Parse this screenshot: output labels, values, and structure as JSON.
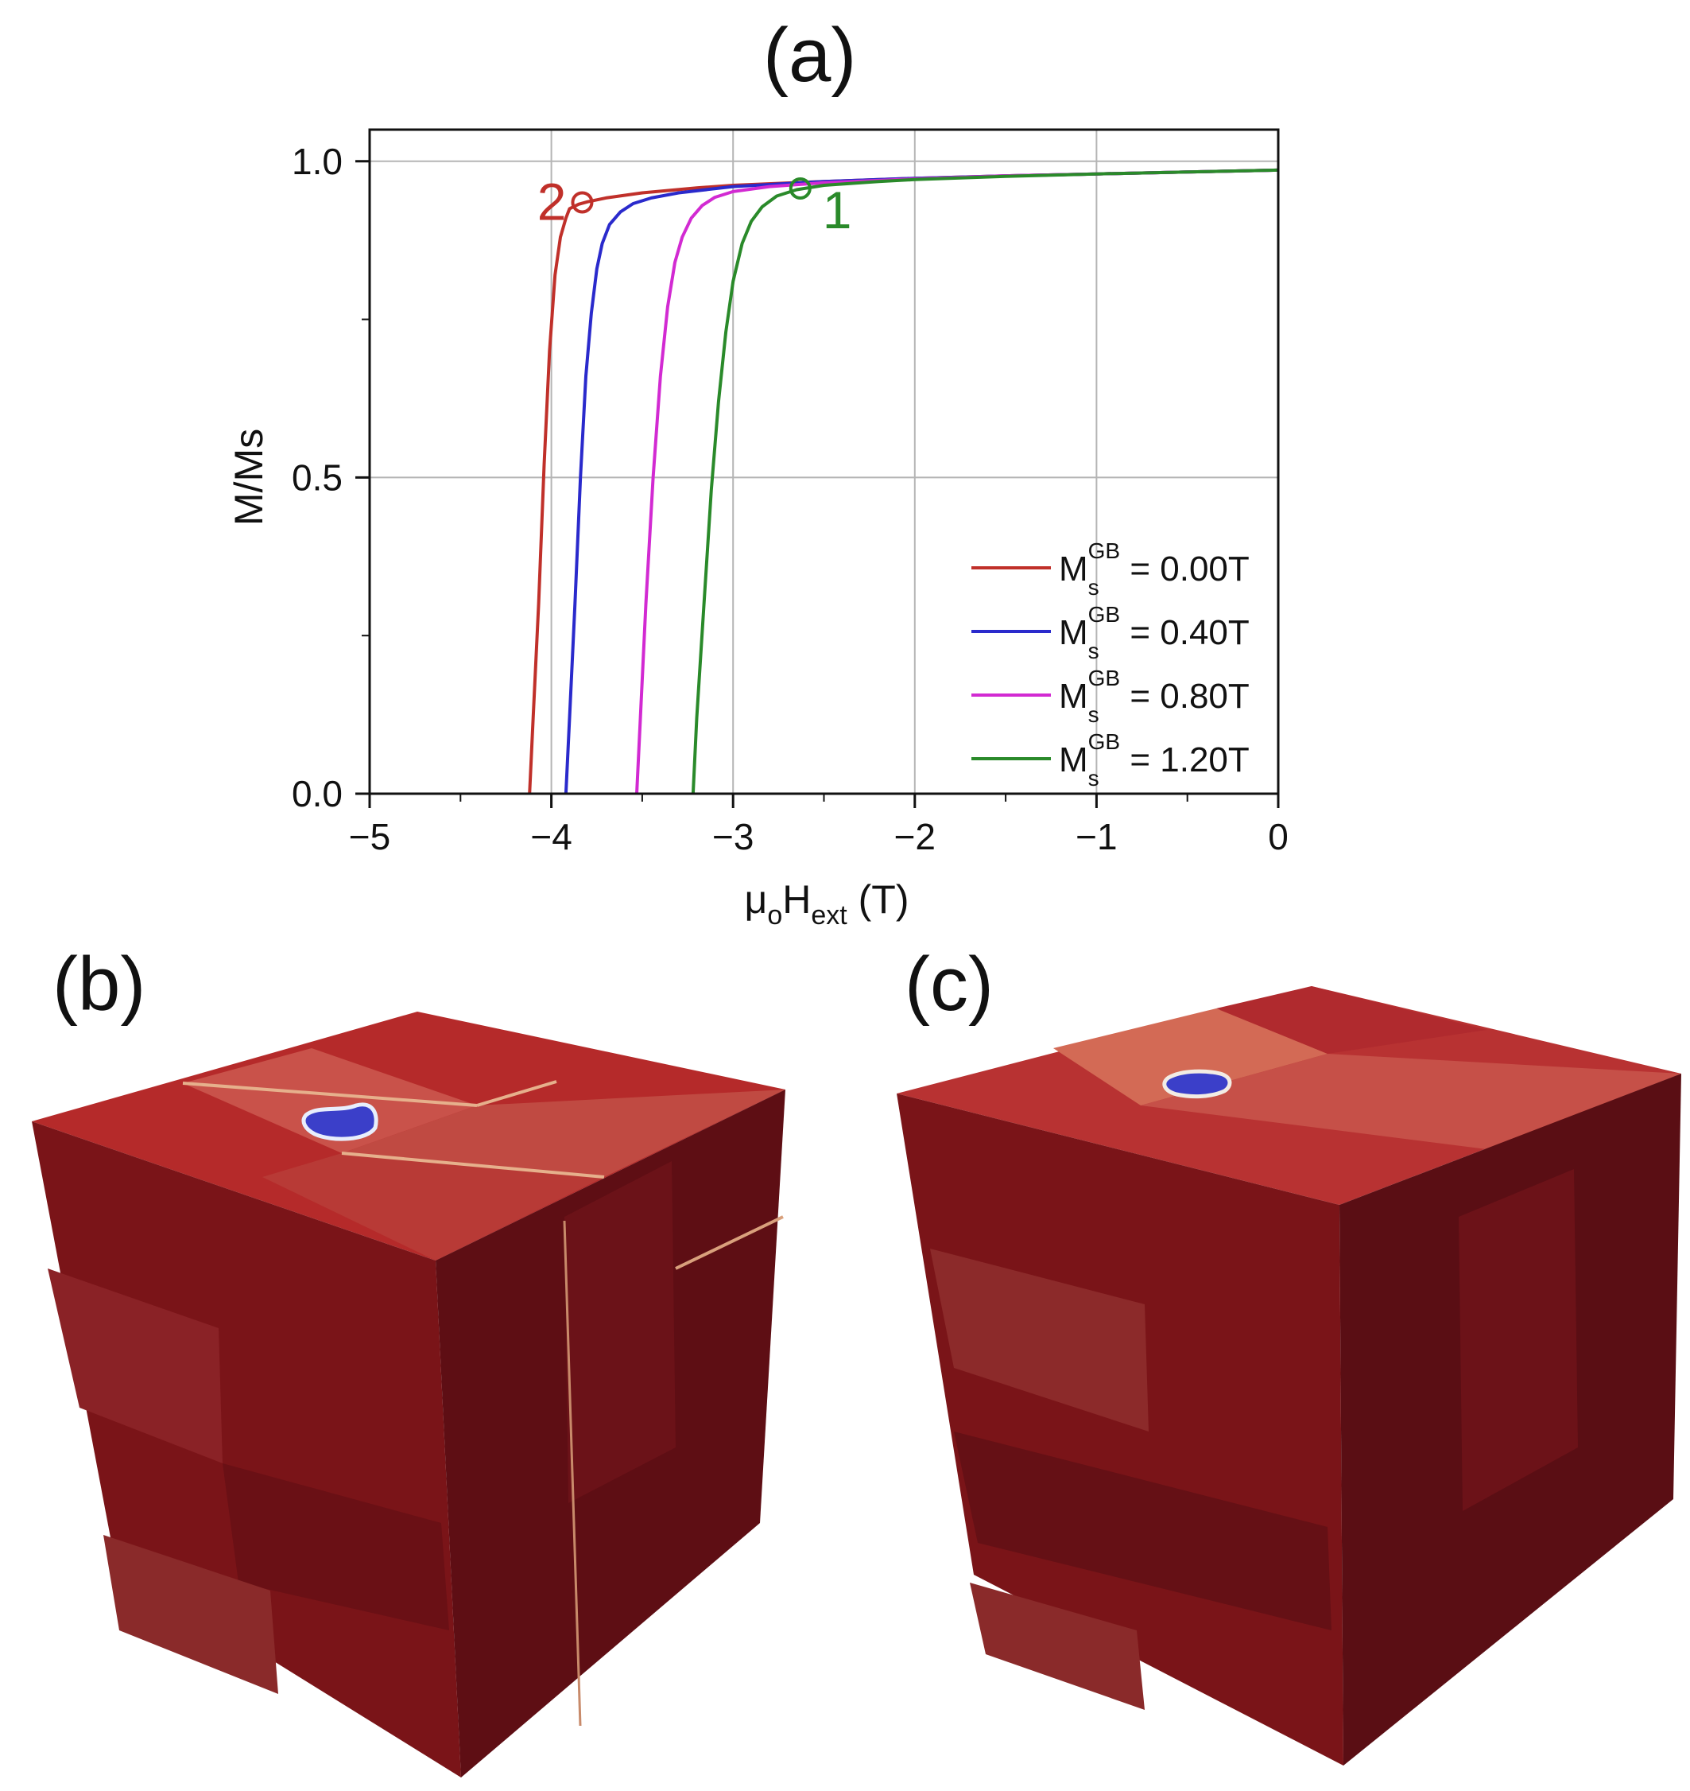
{
  "panels": {
    "a": "(a)",
    "b": "(b)",
    "c": "(c)"
  },
  "chart_data": {
    "type": "line",
    "title": "",
    "xlabel": {
      "main": "μ",
      "sub1": "o",
      "mid": "H",
      "sub2": "ext",
      "unit": " (T)"
    },
    "ylabel": "M/Ms",
    "xlim": [
      -5,
      0
    ],
    "ylim": [
      0,
      1.05
    ],
    "xticks": [
      -5,
      -4,
      -3,
      -2,
      -1,
      0
    ],
    "xtick_labels": [
      "−5",
      "−4",
      "−3",
      "−2",
      "−1",
      "0"
    ],
    "yticks": [
      0,
      0.5,
      1.0
    ],
    "ytick_labels": [
      "0.0",
      "0.5",
      "1.0"
    ],
    "grid": true,
    "legend_position": "bottom-right",
    "series": [
      {
        "name": "Ms GB = 0.00T",
        "legend": {
          "base": "M",
          "sub": "s",
          "sup": "GB",
          "value": " = 0.00T"
        },
        "color": "#c0302a",
        "x": [
          -4.12,
          -4.1,
          -4.07,
          -4.04,
          -4.01,
          -3.98,
          -3.95,
          -3.92,
          -3.9,
          -3.85,
          -3.8,
          -3.7,
          -3.5,
          -3.2,
          -3.0,
          -2.5,
          -2.0,
          -1.5,
          -1.0,
          -0.5,
          0.0
        ],
        "y": [
          0.0,
          0.12,
          0.3,
          0.52,
          0.7,
          0.82,
          0.88,
          0.91,
          0.925,
          0.932,
          0.936,
          0.942,
          0.95,
          0.958,
          0.962,
          0.968,
          0.973,
          0.977,
          0.98,
          0.983,
          0.986
        ]
      },
      {
        "name": "Ms GB = 0.40T",
        "legend": {
          "base": "M",
          "sub": "s",
          "sup": "GB",
          "value": " = 0.40T"
        },
        "color": "#2a2acc",
        "x": [
          -3.92,
          -3.9,
          -3.87,
          -3.84,
          -3.81,
          -3.78,
          -3.75,
          -3.72,
          -3.68,
          -3.62,
          -3.55,
          -3.45,
          -3.3,
          -3.0,
          -2.5,
          -2.0,
          -1.5,
          -1.0,
          -0.5,
          0.0
        ],
        "y": [
          0.0,
          0.12,
          0.3,
          0.5,
          0.66,
          0.76,
          0.83,
          0.87,
          0.9,
          0.92,
          0.933,
          0.942,
          0.95,
          0.96,
          0.968,
          0.973,
          0.977,
          0.98,
          0.983,
          0.986
        ]
      },
      {
        "name": "Ms GB = 0.80T",
        "legend": {
          "base": "M",
          "sub": "s",
          "sup": "GB",
          "value": " = 0.80T"
        },
        "color": "#d22ad2",
        "x": [
          -3.53,
          -3.51,
          -3.48,
          -3.44,
          -3.4,
          -3.36,
          -3.32,
          -3.28,
          -3.23,
          -3.17,
          -3.1,
          -3.0,
          -2.8,
          -2.5,
          -2.0,
          -1.5,
          -1.0,
          -0.5,
          0.0
        ],
        "y": [
          0.0,
          0.12,
          0.3,
          0.5,
          0.66,
          0.77,
          0.84,
          0.88,
          0.91,
          0.93,
          0.943,
          0.952,
          0.96,
          0.966,
          0.972,
          0.977,
          0.98,
          0.983,
          0.986
        ]
      },
      {
        "name": "Ms GB = 1.20T",
        "legend": {
          "base": "M",
          "sub": "s",
          "sup": "GB",
          "value": " = 1.20T"
        },
        "color": "#2a8a2a",
        "x": [
          -3.22,
          -3.2,
          -3.16,
          -3.12,
          -3.08,
          -3.04,
          -3.0,
          -2.95,
          -2.9,
          -2.84,
          -2.76,
          -2.65,
          -2.5,
          -2.2,
          -2.0,
          -1.5,
          -1.0,
          -0.5,
          0.0
        ],
        "y": [
          0.0,
          0.12,
          0.3,
          0.48,
          0.62,
          0.73,
          0.81,
          0.87,
          0.905,
          0.928,
          0.945,
          0.955,
          0.962,
          0.968,
          0.971,
          0.976,
          0.98,
          0.983,
          0.986
        ]
      }
    ],
    "annotations": [
      {
        "label": "2",
        "x": -3.83,
        "y": 0.935,
        "color": "#c0302a",
        "side": "left"
      },
      {
        "label": "1",
        "x": -2.63,
        "y": 0.957,
        "color": "#2a8a2a",
        "side": "below-right"
      }
    ]
  }
}
